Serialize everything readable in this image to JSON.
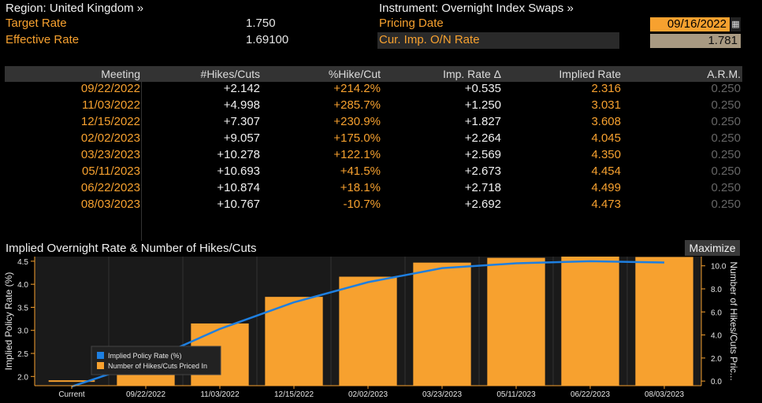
{
  "header": {
    "region_label": "Region: United Kingdom »",
    "target_rate_label": "Target Rate",
    "target_rate_value": "1.750",
    "effective_rate_label": "Effective Rate",
    "effective_rate_value": "1.69100",
    "instrument_label": "Instrument: Overnight Index Swaps »",
    "pricing_date_label": "Pricing Date",
    "pricing_date_value": "09/16/2022",
    "cur_imp_label": "Cur. Imp. O/N Rate",
    "cur_imp_value": "1.781"
  },
  "table": {
    "columns": [
      "Meeting",
      "#Hikes/Cuts",
      "%Hike/Cut",
      "Imp. Rate Δ",
      "Implied Rate",
      "A.R.M."
    ],
    "rows": [
      [
        "09/22/2022",
        "+2.142",
        "+214.2%",
        "+0.535",
        "2.316",
        "0.250"
      ],
      [
        "11/03/2022",
        "+4.998",
        "+285.7%",
        "+1.250",
        "3.031",
        "0.250"
      ],
      [
        "12/15/2022",
        "+7.307",
        "+230.9%",
        "+1.827",
        "3.608",
        "0.250"
      ],
      [
        "02/02/2023",
        "+9.057",
        "+175.0%",
        "+2.264",
        "4.045",
        "0.250"
      ],
      [
        "03/23/2023",
        "+10.278",
        "+122.1%",
        "+2.569",
        "4.350",
        "0.250"
      ],
      [
        "05/11/2023",
        "+10.693",
        "+41.5%",
        "+2.673",
        "4.454",
        "0.250"
      ],
      [
        "06/22/2023",
        "+10.874",
        "+18.1%",
        "+2.718",
        "4.499",
        "0.250"
      ],
      [
        "08/03/2023",
        "+10.767",
        "-10.7%",
        "+2.692",
        "4.473",
        "0.250"
      ]
    ]
  },
  "chart": {
    "title": "Implied Overnight Rate & Number of Hikes/Cuts",
    "maximize_label": "Maximize"
  },
  "chart_data": {
    "type": "bar",
    "categories": [
      "Current",
      "09/22/2022",
      "11/03/2022",
      "12/15/2022",
      "02/02/2023",
      "03/23/2023",
      "05/11/2023",
      "06/22/2023",
      "08/03/2023"
    ],
    "series": [
      {
        "name": "Implied Policy Rate (%)",
        "type": "line",
        "axis": "left",
        "values": [
          1.781,
          2.316,
          3.031,
          3.608,
          4.045,
          4.35,
          4.454,
          4.499,
          4.473
        ]
      },
      {
        "name": "Number of Hikes/Cuts Priced In",
        "type": "bar",
        "axis": "right",
        "values": [
          0,
          2.142,
          4.998,
          7.307,
          9.057,
          10.278,
          10.693,
          10.874,
          10.767
        ]
      }
    ],
    "ylabel": "Implied Policy Rate (%)",
    "y2label": "Number of Hikes/Cuts Pric...",
    "yticks": [
      2.0,
      2.5,
      3.0,
      3.5,
      4.0,
      4.5
    ],
    "y2ticks": [
      0.0,
      2.0,
      4.0,
      6.0,
      8.0,
      10.0
    ],
    "ylim": [
      1.8,
      4.6
    ],
    "y2lim": [
      -0.4,
      10.8
    ],
    "legend_position": "bottom-left",
    "colors": {
      "line": "#1e7fe0",
      "bar": "#f7a12f"
    }
  }
}
